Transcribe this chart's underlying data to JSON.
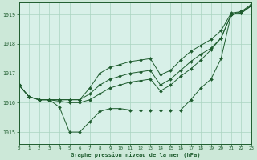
{
  "xlabel": "Graphe pression niveau de la mer (hPa)",
  "background_color": "#cce8d8",
  "plot_bg_color": "#d8f0e8",
  "grid_color": "#aad4c0",
  "line_color": "#1e5c2e",
  "xlim": [
    0,
    23
  ],
  "ylim": [
    1014.6,
    1019.4
  ],
  "yticks": [
    1015,
    1016,
    1017,
    1018,
    1019
  ],
  "xticks": [
    0,
    1,
    2,
    3,
    4,
    5,
    6,
    7,
    8,
    9,
    10,
    11,
    12,
    13,
    14,
    15,
    16,
    17,
    18,
    19,
    20,
    21,
    22,
    23
  ],
  "series": [
    [
      1016.6,
      1016.2,
      1016.1,
      1016.1,
      1015.85,
      1015.0,
      1015.0,
      1015.35,
      1015.7,
      1015.8,
      1015.8,
      1015.75,
      1015.75,
      1015.75,
      1015.75,
      1015.75,
      1015.75,
      1016.1,
      1016.5,
      1016.8,
      1017.5,
      1019.0,
      1019.05,
      1019.3
    ],
    [
      1016.6,
      1016.2,
      1016.1,
      1016.1,
      1016.05,
      1016.0,
      1016.0,
      1016.1,
      1016.3,
      1016.5,
      1016.6,
      1016.7,
      1016.75,
      1016.8,
      1016.4,
      1016.6,
      1016.9,
      1017.15,
      1017.45,
      1017.8,
      1018.2,
      1019.0,
      1019.05,
      1019.3
    ],
    [
      1016.6,
      1016.2,
      1016.1,
      1016.1,
      1016.1,
      1016.1,
      1016.1,
      1016.3,
      1016.6,
      1016.8,
      1016.9,
      1017.0,
      1017.05,
      1017.1,
      1016.6,
      1016.8,
      1017.1,
      1017.4,
      1017.65,
      1017.85,
      1018.2,
      1019.0,
      1019.1,
      1019.3
    ],
    [
      1016.6,
      1016.2,
      1016.1,
      1016.1,
      1016.1,
      1016.1,
      1016.1,
      1016.5,
      1017.0,
      1017.2,
      1017.3,
      1017.4,
      1017.45,
      1017.5,
      1016.95,
      1017.1,
      1017.45,
      1017.75,
      1017.95,
      1018.15,
      1018.45,
      1019.05,
      1019.1,
      1019.35
    ]
  ]
}
